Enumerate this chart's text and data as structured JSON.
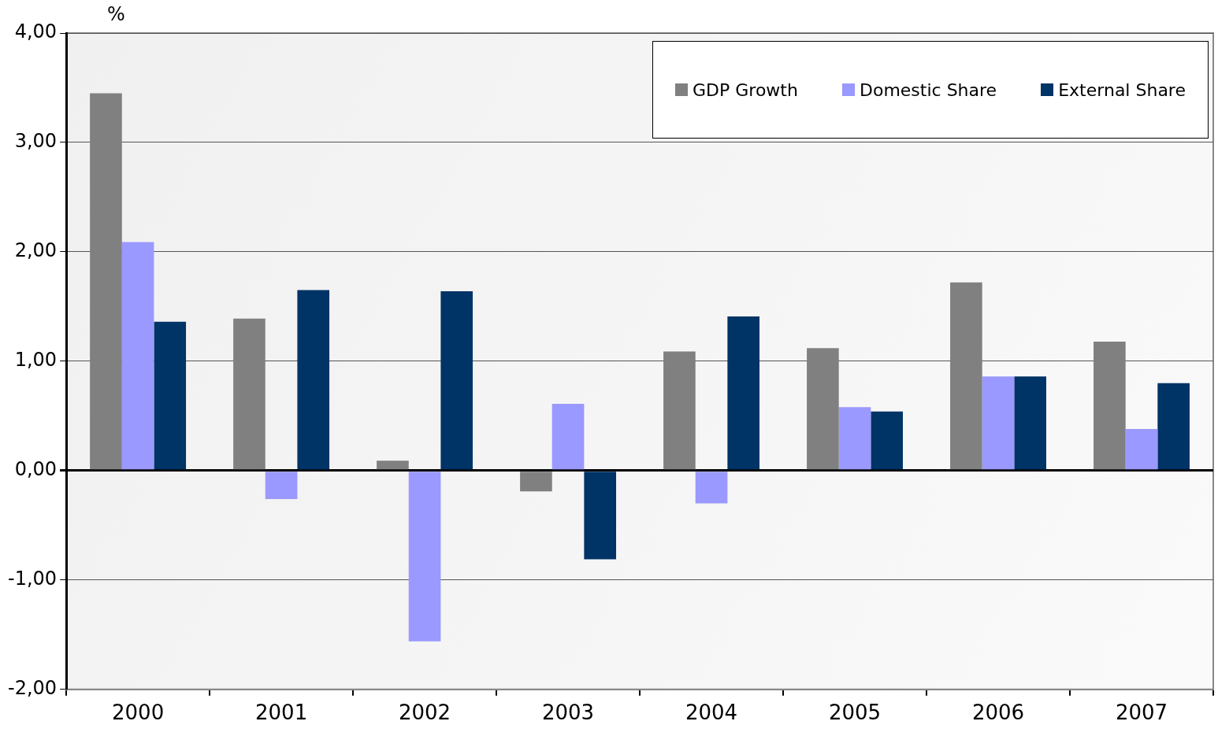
{
  "chart_data": {
    "type": "bar",
    "ylabel": "%",
    "categories": [
      "2000",
      "2001",
      "2002",
      "2003",
      "2004",
      "2005",
      "2006",
      "2007"
    ],
    "series": [
      {
        "name": "GDP Growth",
        "color": "#808080",
        "values": [
          3.45,
          1.39,
          0.09,
          -0.19,
          1.09,
          1.12,
          1.72,
          1.18
        ]
      },
      {
        "name": "Domestic Share",
        "color": "#9999ff",
        "values": [
          2.09,
          -0.26,
          -1.56,
          0.61,
          -0.3,
          0.58,
          0.86,
          0.38
        ]
      },
      {
        "name": "External Share",
        "color": "#003366",
        "values": [
          1.36,
          1.65,
          1.64,
          -0.81,
          1.41,
          0.54,
          0.86,
          0.8
        ]
      }
    ],
    "ylim": [
      -2,
      4
    ],
    "yticks": [
      {
        "value": -2,
        "label": "-2,00"
      },
      {
        "value": -1,
        "label": "-1,00"
      },
      {
        "value": 0,
        "label": "0,00"
      },
      {
        "value": 1,
        "label": "1,00"
      },
      {
        "value": 2,
        "label": "2,00"
      },
      {
        "value": 3,
        "label": "3,00"
      },
      {
        "value": 4,
        "label": "4,00"
      }
    ],
    "grid": "y",
    "legend": "top right"
  }
}
